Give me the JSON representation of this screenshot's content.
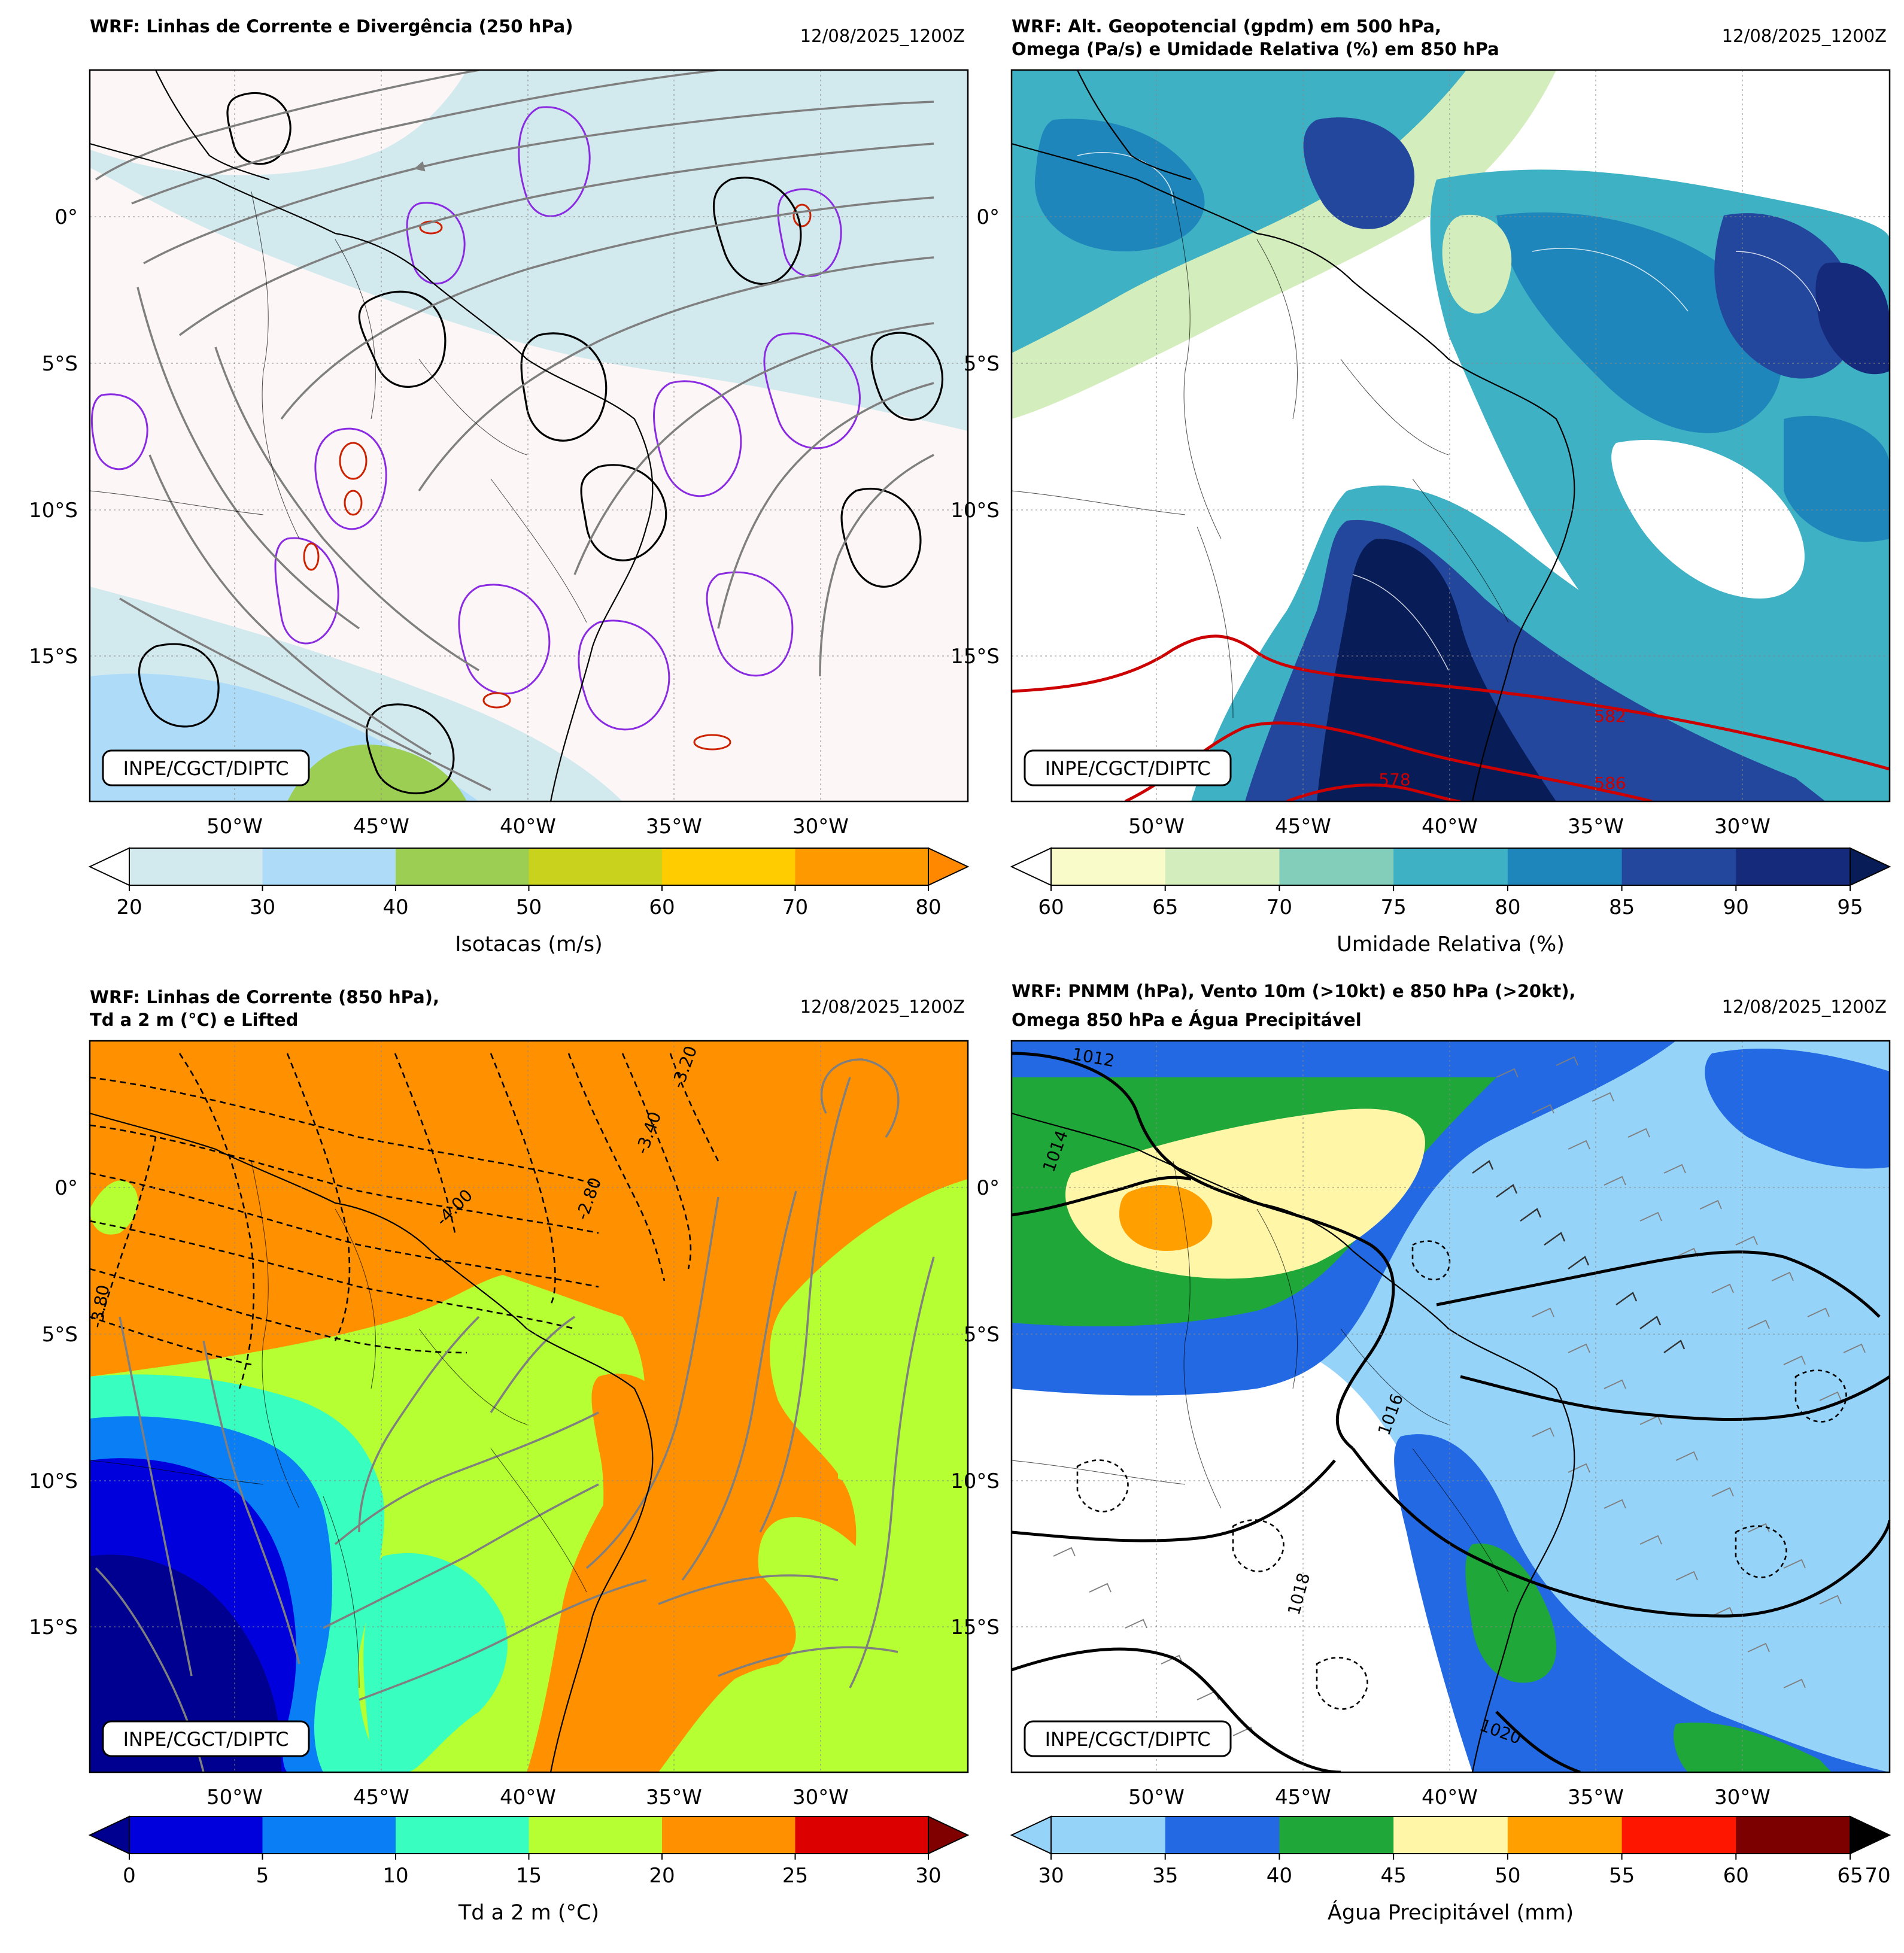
{
  "meta": {
    "lon_ticks": [
      "50°W",
      "45°W",
      "40°W",
      "35°W",
      "30°W"
    ],
    "lat_ticks": [
      "0°",
      "5°S",
      "10°S",
      "15°S"
    ],
    "credit": "INPE/CGCT/DIPTC",
    "timestamp": "12/08/2025_1200Z"
  },
  "panels": [
    {
      "id": "p250",
      "title_lines": [
        "WRF: Linhas de Corrente e Divergência (250 hPa)"
      ],
      "colorbar": {
        "label": "Isotacas (m/s)",
        "ticks": [
          "20",
          "30",
          "40",
          "50",
          "60",
          "70",
          "80"
        ],
        "colors": [
          "#d2e9ee",
          "#aedcf8",
          "#9bce52",
          "#c9d31d",
          "#ffcc00",
          "#ff9900"
        ],
        "extend_low": "#ffffff",
        "extend_high": "#ff8800"
      },
      "map_colors": {
        "background": "#fcf7f6",
        "band": "#d2e9ee",
        "band2": "#aedcf8",
        "band3": "#9bce52"
      }
    },
    {
      "id": "p500",
      "title_lines": [
        "WRF: Alt. Geopotencial (gpdm) em 500 hPa,",
        "Omega (Pa/s) e Umidade Relativa (%) em 850 hPa"
      ],
      "colorbar": {
        "label": "Umidade Relativa (%)",
        "ticks": [
          "60",
          "65",
          "70",
          "75",
          "80",
          "85",
          "90",
          "95"
        ],
        "colors": [
          "#f9fcc9",
          "#d4edbc",
          "#83cebb",
          "#3eb1c4",
          "#1e86ba",
          "#23479c",
          "#162a7b"
        ],
        "extend_low": "#ffffff",
        "extend_high": "#081d58"
      },
      "contour_labels": [
        "582",
        "578",
        "586"
      ],
      "map_colors": {
        "background": "#ffffff",
        "a": "#3eb1c4",
        "b": "#1e86ba",
        "c": "#23479c",
        "d": "#081d58",
        "e": "#d4edbc",
        "geo": "#cc0000"
      }
    },
    {
      "id": "p850",
      "title_lines": [
        "WRF: Linhas de Corrente (850 hPa),",
        "Td a 2 m (°C) e Lifted"
      ],
      "colorbar": {
        "label": "Td a 2 m (°C)",
        "ticks": [
          "0",
          "5",
          "10",
          "15",
          "20",
          "25",
          "30"
        ],
        "colors": [
          "#0000dd",
          "#0a7ff5",
          "#38ffc0",
          "#b5ff33",
          "#ff9100",
          "#dd0000"
        ],
        "extend_low": "#000090",
        "extend_high": "#800000"
      },
      "contour_labels": [
        "-3.80",
        "-2.80",
        "-3.40",
        "-4.00",
        "-3.20"
      ],
      "map_colors": {
        "orange": "#ff9100",
        "lime": "#b5ff33",
        "cyan": "#38ffc0",
        "blue": "#0a7ff5",
        "navy": "#000090"
      }
    },
    {
      "id": "psfc",
      "title_lines": [
        "WRF: PNMM (hPa), Vento 10m (>10kt) e 850 hPa (>20kt),",
        "Omega 850 hPa e Água Precipitável"
      ],
      "colorbar": {
        "label": "Água Precipitável (mm)",
        "ticks": [
          "30",
          "35",
          "40",
          "45",
          "50",
          "55",
          "60",
          "65",
          "70"
        ],
        "colors": [
          "#96d3f9",
          "#2269e3",
          "#1fa839",
          "#fff6a8",
          "#ff9f00",
          "#ff1600",
          "#7c0000"
        ],
        "extend_low": "#96d3f9",
        "extend_high": "#000000"
      },
      "contour_labels": [
        "1014",
        "1016",
        "1018",
        "1020",
        "1012"
      ],
      "map_colors": {
        "background": "#ffffff",
        "light": "#96d3f9",
        "blue": "#2269e3",
        "green": "#1fa839",
        "yellow": "#fff6a8",
        "orange": "#ff9f00"
      }
    }
  ]
}
